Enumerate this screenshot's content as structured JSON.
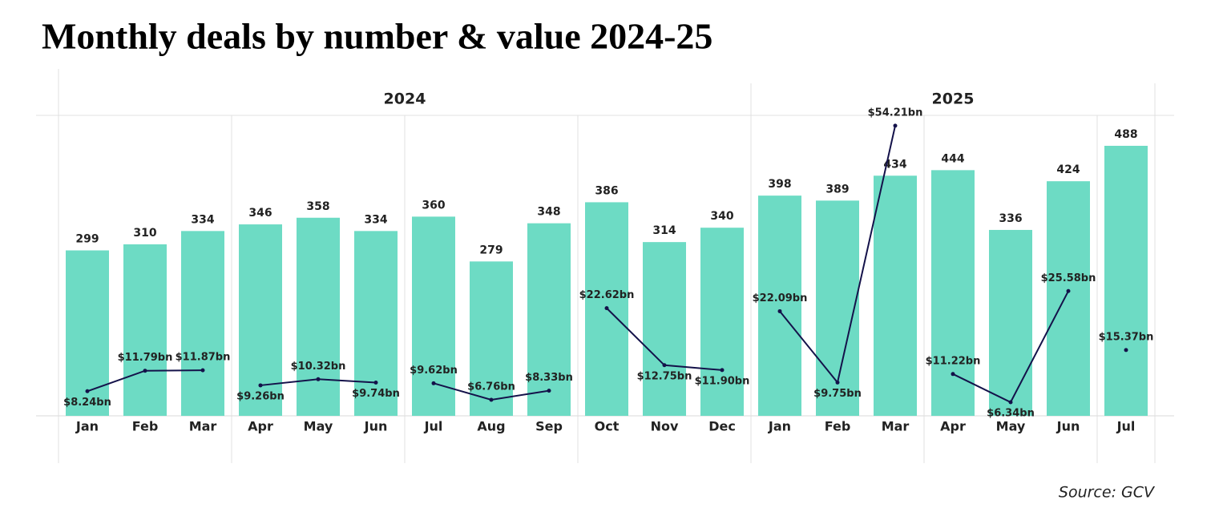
{
  "chart_data": {
    "type": "bar-line",
    "title": "Monthly deals by number & value 2024-25",
    "source": "Source: GCV",
    "groups": [
      {
        "name": "2024",
        "categories": [
          "Jan",
          "Feb",
          "Mar",
          "Apr",
          "May",
          "Jun",
          "Jul",
          "Aug",
          "Sep",
          "Oct",
          "Nov",
          "Dec"
        ]
      },
      {
        "name": "2025",
        "categories": [
          "Jan",
          "Feb",
          "Mar",
          "Apr",
          "May",
          "Jun",
          "Jul"
        ]
      }
    ],
    "ylim": [
      0,
      543
    ],
    "y2lim": [
      3.98,
      56
    ],
    "series": [
      {
        "type": "bar",
        "color": "#6ddbc4",
        "values": [
          299,
          310,
          334,
          346,
          358,
          334,
          360,
          279,
          348,
          386,
          314,
          340,
          398,
          389,
          434,
          444,
          336,
          424,
          488
        ]
      },
      {
        "type": "line",
        "axis": "y2",
        "color": "#14124a",
        "values": [
          8.24,
          11.79,
          11.87,
          9.26,
          10.32,
          9.74,
          9.62,
          6.76,
          8.33,
          22.62,
          12.75,
          11.9,
          22.09,
          9.75,
          54.21,
          11.22,
          6.34,
          25.58,
          15.37
        ],
        "value_labels": [
          "$8.24bn",
          "$11.79bn",
          "$11.87bn",
          "$9.26bn",
          "$10.32bn",
          "$9.74bn",
          "$9.62bn",
          "$6.76bn",
          "$8.33bn",
          "$22.62bn",
          "$12.75bn",
          "$11.90bn",
          "$22.09bn",
          "$9.75bn",
          "$54.21bn",
          "$11.22bn",
          "$6.34bn",
          "$25.58bn",
          "$15.37bn"
        ]
      }
    ]
  }
}
